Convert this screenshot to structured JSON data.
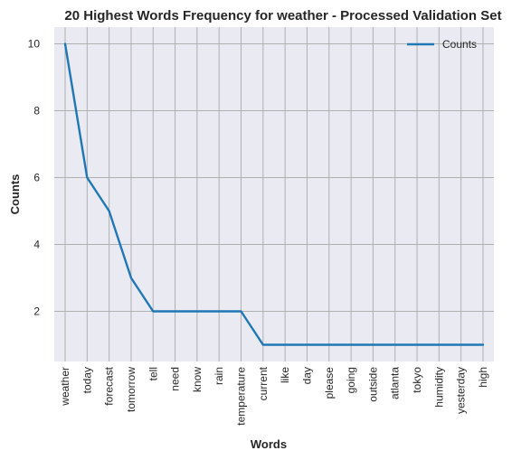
{
  "chart_data": {
    "type": "line",
    "title": "20 Highest Words Frequency for weather - Processed Validation Set",
    "xlabel": "Words",
    "ylabel": "Counts",
    "categories": [
      "weather",
      "today",
      "forecast",
      "tomorrow",
      "tell",
      "need",
      "know",
      "rain",
      "temperature",
      "current",
      "like",
      "day",
      "please",
      "going",
      "outside",
      "atlanta",
      "tokyo",
      "humidity",
      "yesterday",
      "high"
    ],
    "series": [
      {
        "name": "Counts",
        "values": [
          10,
          6,
          5,
          3,
          2,
          2,
          2,
          2,
          2,
          1,
          1,
          1,
          1,
          1,
          1,
          1,
          1,
          1,
          1,
          1
        ]
      }
    ],
    "yticks": [
      2,
      4,
      6,
      8,
      10
    ],
    "ylim": [
      0.5,
      10.5
    ],
    "grid": true,
    "legend": "top-right",
    "colors": {
      "line": "#1f77b4",
      "background": "#eaeaf2",
      "grid": "#b0b0b0"
    }
  }
}
